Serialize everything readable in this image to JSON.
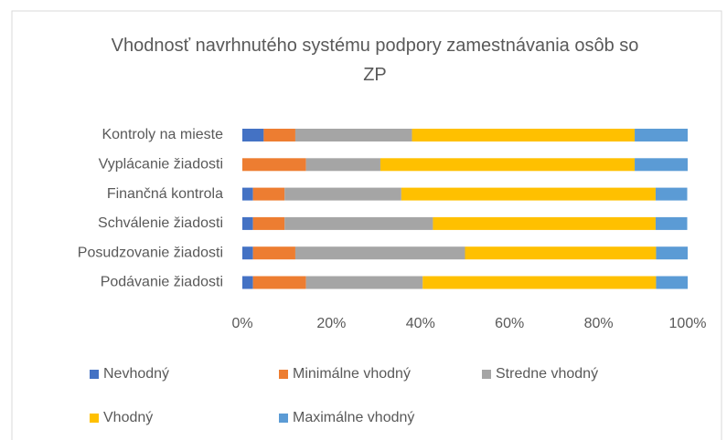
{
  "chart_data": {
    "type": "bar",
    "orientation": "horizontal",
    "stacked": true,
    "title": "Vhodnosť navrhnutého systému podpory zamestnávania osôb so ZP",
    "categories": [
      "Kontroly na mieste",
      "Vyplácanie žiadosti",
      "Finančná kontrola",
      "Schválenie žiadosti",
      "Posudzovanie žiadosti",
      "Podávanie žiadosti"
    ],
    "series": [
      {
        "name": "Nevhodný",
        "color": "#4472c4",
        "values": [
          4.8,
          0,
          2.4,
          2.4,
          2.4,
          2.4
        ]
      },
      {
        "name": "Minimálne vhodný",
        "color": "#ed7d31",
        "values": [
          7.1,
          14.3,
          7.1,
          7.1,
          9.5,
          11.9
        ]
      },
      {
        "name": "Stredne vhodný",
        "color": "#a5a5a5",
        "values": [
          26.2,
          16.7,
          26.2,
          33.3,
          38.1,
          26.2
        ]
      },
      {
        "name": "Vhodný",
        "color": "#ffc000",
        "values": [
          50,
          57.1,
          57.1,
          50,
          42.9,
          52.4
        ]
      },
      {
        "name": "Maximálne vhodný",
        "color": "#5b9bd5",
        "values": [
          11.9,
          11.9,
          7.1,
          7.1,
          7.1,
          7.1
        ]
      }
    ],
    "xlim": [
      0,
      100
    ],
    "xticks": [
      {
        "value": 0,
        "label": "0%"
      },
      {
        "value": 20,
        "label": "20%"
      },
      {
        "value": 40,
        "label": "40%"
      },
      {
        "value": 60,
        "label": "60%"
      },
      {
        "value": 80,
        "label": "80%"
      },
      {
        "value": 100,
        "label": "100%"
      }
    ],
    "grid": false,
    "legend": "bottom"
  }
}
